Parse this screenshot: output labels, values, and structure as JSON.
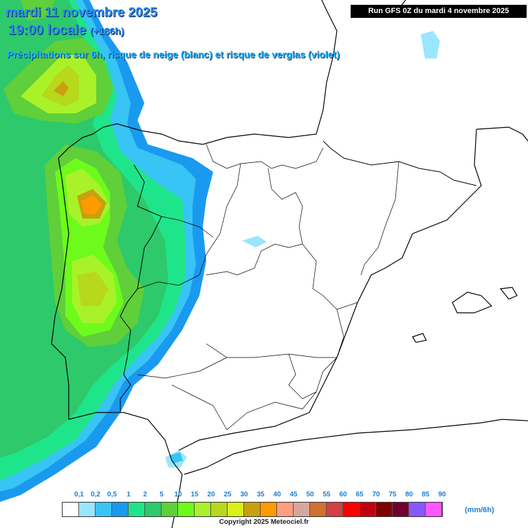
{
  "header": {
    "date": "mardi 11 novembre 2025",
    "time": "19:00 locale",
    "offset": "(+186h)",
    "subtitle": "Précipitations sur 6h, risque de neige (blanc) et risque de verglas (violet)",
    "run": "Run GFS 0Z du mardi 4 novembre 2025"
  },
  "legend": {
    "labels": [
      "0,1",
      "0,2",
      "0,5",
      "1",
      "2",
      "5",
      "10",
      "15",
      "20",
      "25",
      "30",
      "35",
      "40",
      "45",
      "50",
      "55",
      "60",
      "65",
      "70",
      "75",
      "80",
      "85",
      "90"
    ],
    "colors": [
      "#ffffff",
      "#9ae6ff",
      "#38c4f4",
      "#1a9aef",
      "#1fe58a",
      "#2ec96a",
      "#5fcf3a",
      "#6dfb1c",
      "#a9f22a",
      "#b8d81b",
      "#d9f01a",
      "#c8a010",
      "#ff9a00",
      "#ff9f80",
      "#d4a8a0",
      "#d27030",
      "#d24040",
      "#ff0000",
      "#c00010",
      "#800000",
      "#700030",
      "#8858ff",
      "#ff58ff"
    ],
    "unit": "(mm/6h)"
  },
  "copyright": "Copyright 2025 Meteociel.fr"
}
